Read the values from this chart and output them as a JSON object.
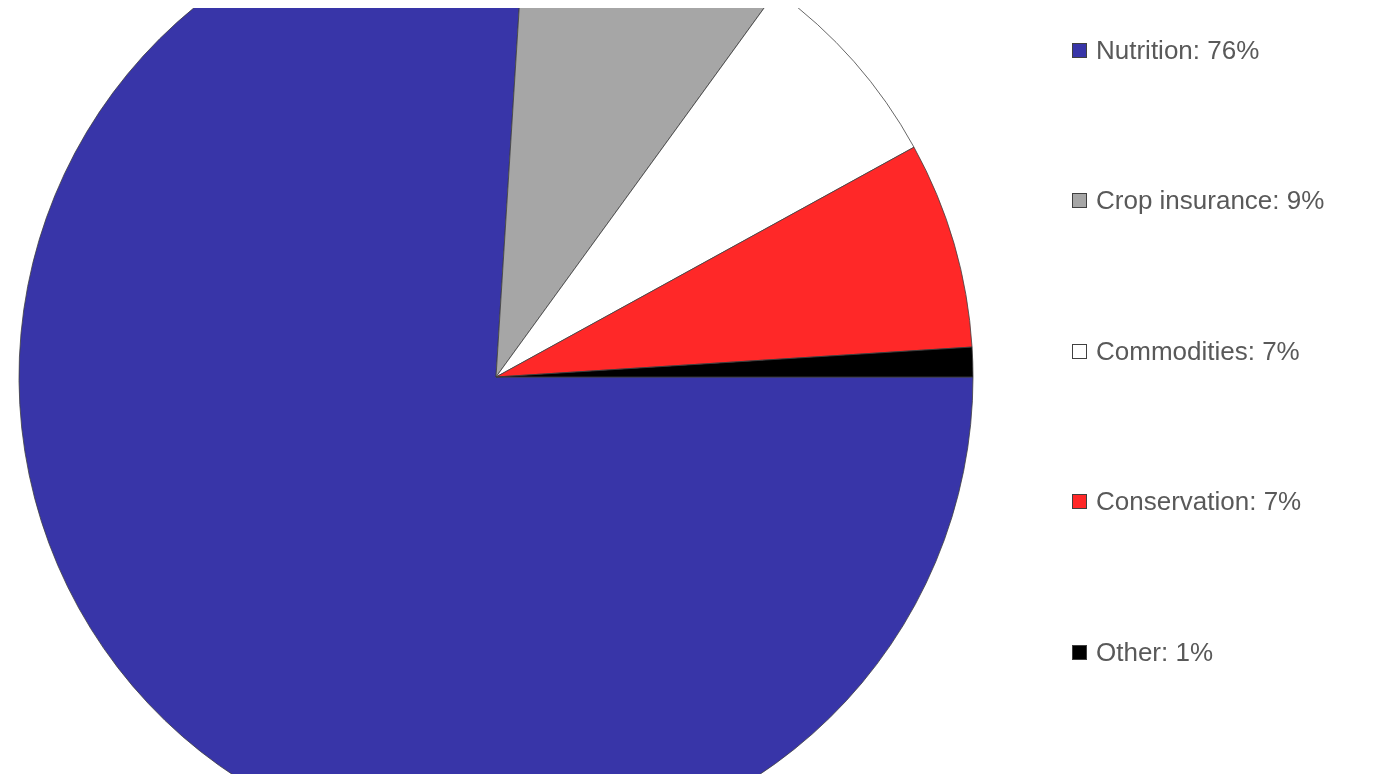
{
  "chart_data": {
    "type": "pie",
    "categories": [
      "Nutrition",
      "Crop insurance",
      "Commodities",
      "Conservation",
      "Other"
    ],
    "values": [
      76,
      9,
      7,
      7,
      1
    ],
    "value_labels": [
      "76%",
      "9%",
      "7%",
      "7%",
      "1%"
    ],
    "colors": [
      "#3835a8",
      "#a6a6a6",
      "#ffffff",
      "#ff2828",
      "#000000"
    ],
    "legend": "right"
  }
}
